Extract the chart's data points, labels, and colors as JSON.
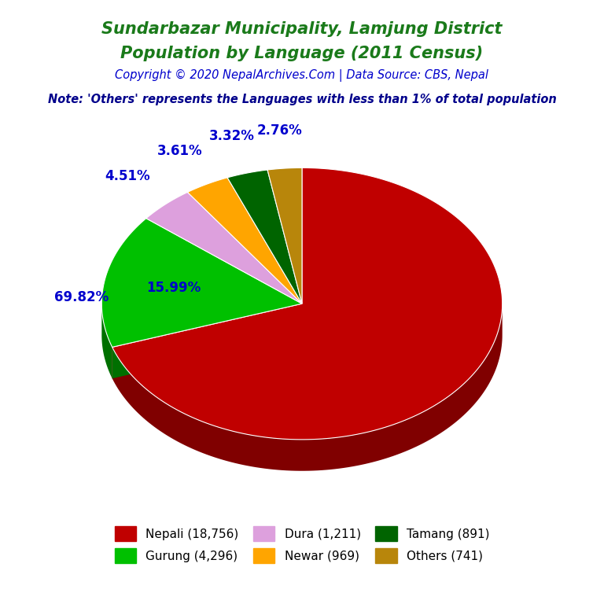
{
  "title_line1": "Sundarbazar Municipality, Lamjung District",
  "title_line2": "Population by Language (2011 Census)",
  "title_color": "#1a7a1a",
  "copyright_text": "Copyright © 2020 NepalArchives.Com | Data Source: CBS, Nepal",
  "copyright_color": "#0000CC",
  "note_text": "Note: 'Others' represents the Languages with less than 1% of total population",
  "note_color": "#00008B",
  "labels": [
    "Nepali (18,756)",
    "Gurung (4,296)",
    "Dura (1,211)",
    "Newar (969)",
    "Tamang (891)",
    "Others (741)"
  ],
  "values": [
    18756,
    4296,
    1211,
    969,
    891,
    741
  ],
  "percentages": [
    "69.82%",
    "15.99%",
    "4.51%",
    "3.61%",
    "3.32%",
    "2.76%"
  ],
  "colors": [
    "#C00000",
    "#00C000",
    "#DDA0DD",
    "#FFA500",
    "#006400",
    "#B8860B"
  ],
  "shadow_colors": [
    "#800000",
    "#007000",
    "#9A6E9A",
    "#CC7A00",
    "#003300",
    "#7A5A00"
  ],
  "pct_color": "#0000CD",
  "pct_fontsize": 12,
  "startangle": 90,
  "legend_fontsize": 11,
  "legend_labels_row1": [
    "Nepali (18,756)",
    "Gurung (4,296)",
    "Dura (1,211)"
  ],
  "legend_labels_row2": [
    "Newar (969)",
    "Tamang (891)",
    "Others (741)"
  ],
  "legend_colors_row1": [
    "#C00000",
    "#00C000",
    "#DDA0DD"
  ],
  "legend_colors_row2": [
    "#FFA500",
    "#006400",
    "#B8860B"
  ]
}
